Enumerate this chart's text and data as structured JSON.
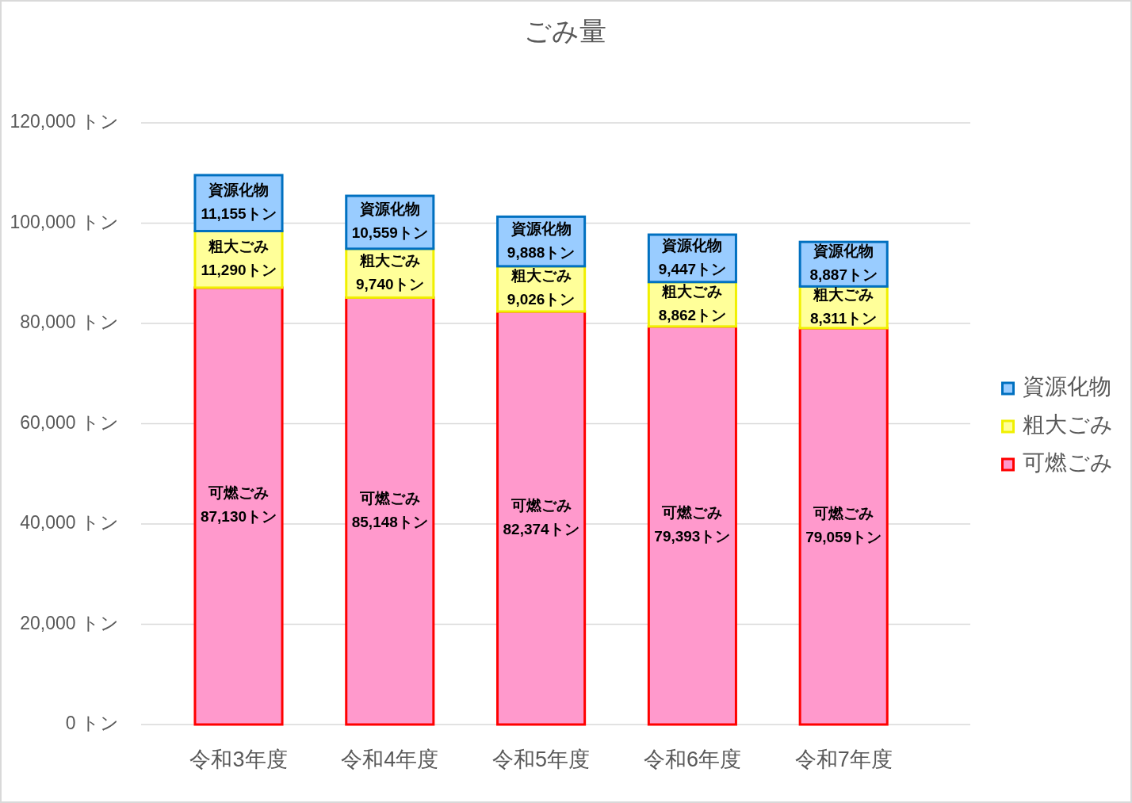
{
  "chart_data": {
    "type": "bar",
    "title": "ごみ量",
    "categories": [
      "令和3年度",
      "令和4年度",
      "令和5年度",
      "令和6年度",
      "令和7年度"
    ],
    "series": [
      {
        "name": "可燃ごみ",
        "color": "#ff99cc",
        "values": [
          87130,
          85148,
          82374,
          79393,
          79059
        ],
        "value_labels": [
          "87,130トン",
          "85,148トン",
          "82,374トン",
          "79,393トン",
          "79,059トン"
        ]
      },
      {
        "name": "粗大ごみ",
        "color": "#ffff99",
        "values": [
          11290,
          9740,
          9026,
          8862,
          8311
        ],
        "value_labels": [
          "11,290トン",
          "9,740トン",
          "9,026トン",
          "8,862トン",
          "8,311トン"
        ]
      },
      {
        "name": "資源化物",
        "color": "#99ccff",
        "values": [
          11155,
          10559,
          9888,
          9447,
          8887
        ],
        "value_labels": [
          "11,155トン",
          "10,559トン",
          "9,888トン",
          "9,447トン",
          "8,887トン"
        ]
      }
    ],
    "stacked": true,
    "ylim": [
      0,
      120000
    ],
    "yticks": [
      {
        "value": 0,
        "label": "0 トン"
      },
      {
        "value": 20000,
        "label": "20,000 トン"
      },
      {
        "value": 40000,
        "label": "40,000 トン"
      },
      {
        "value": 60000,
        "label": "60,000 トン"
      },
      {
        "value": 80000,
        "label": "80,000 トン"
      },
      {
        "value": 100000,
        "label": "100,000 トン"
      },
      {
        "value": 120000,
        "label": "120,000 トン"
      }
    ],
    "grid": "y",
    "legend": "right"
  }
}
